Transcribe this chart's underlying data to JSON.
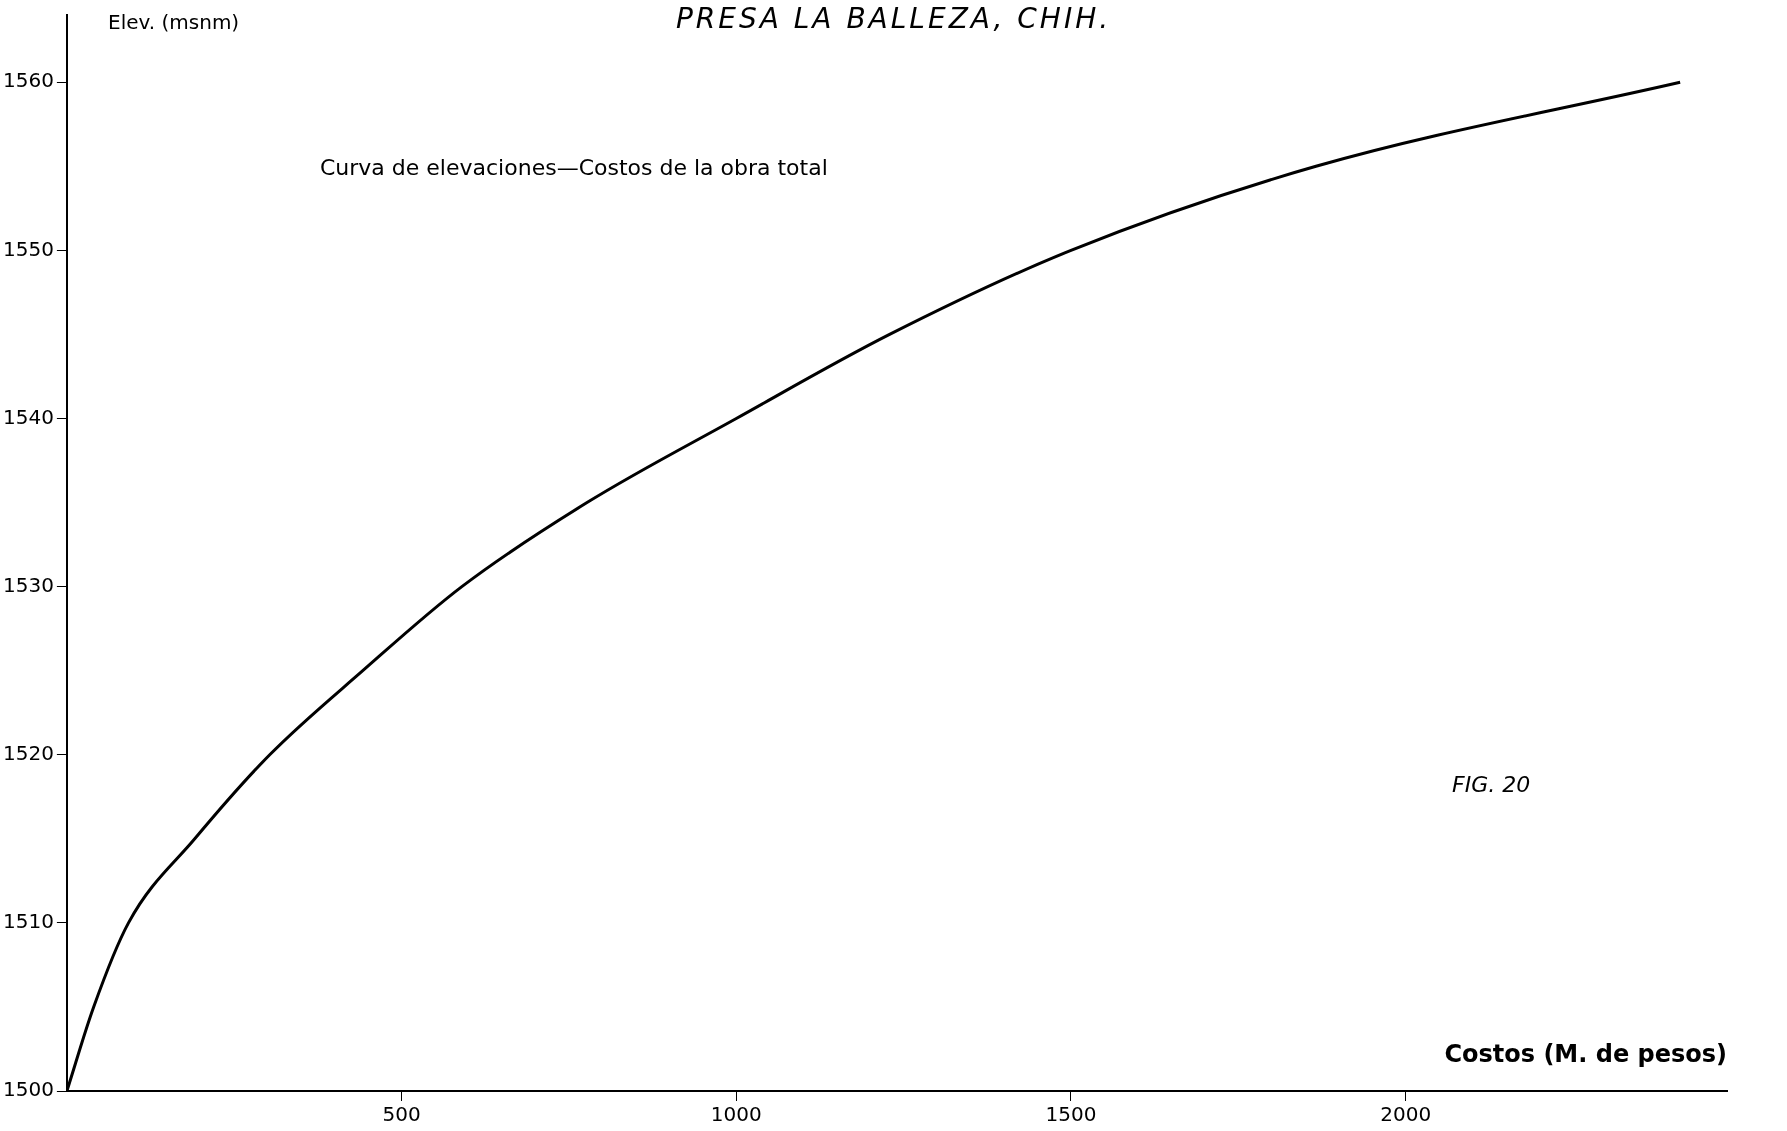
{
  "chart_data": {
    "type": "line",
    "title": "PRESA LA BALLEZA, CHIH.",
    "xlabel": "Costos (M. de pesos)",
    "ylabel": "Elev. (msnm)",
    "x": [
      0,
      40,
      92,
      191,
      303,
      442,
      590,
      777,
      1000,
      1229,
      1500,
      1866,
      2410
    ],
    "series": [
      {
        "color": "#000000",
        "values": [
          1500,
          1505,
          1510,
          1515,
          1520,
          1525,
          1530,
          1535,
          1540,
          1545,
          1550,
          1555,
          1560
        ]
      }
    ],
    "xlim": [
      0,
      2480
    ],
    "xticks": [
      500,
      1000,
      1500,
      2000
    ],
    "ylim": [
      1500,
      1564
    ],
    "yticks": [
      1500,
      1510,
      1520,
      1530,
      1540,
      1550,
      1560
    ],
    "grid": false,
    "legend": false,
    "marker": "none",
    "line_style": "solid",
    "annotations": [
      "Curva de elevaciones—Costos de la obra total",
      "FIG. 20"
    ]
  }
}
